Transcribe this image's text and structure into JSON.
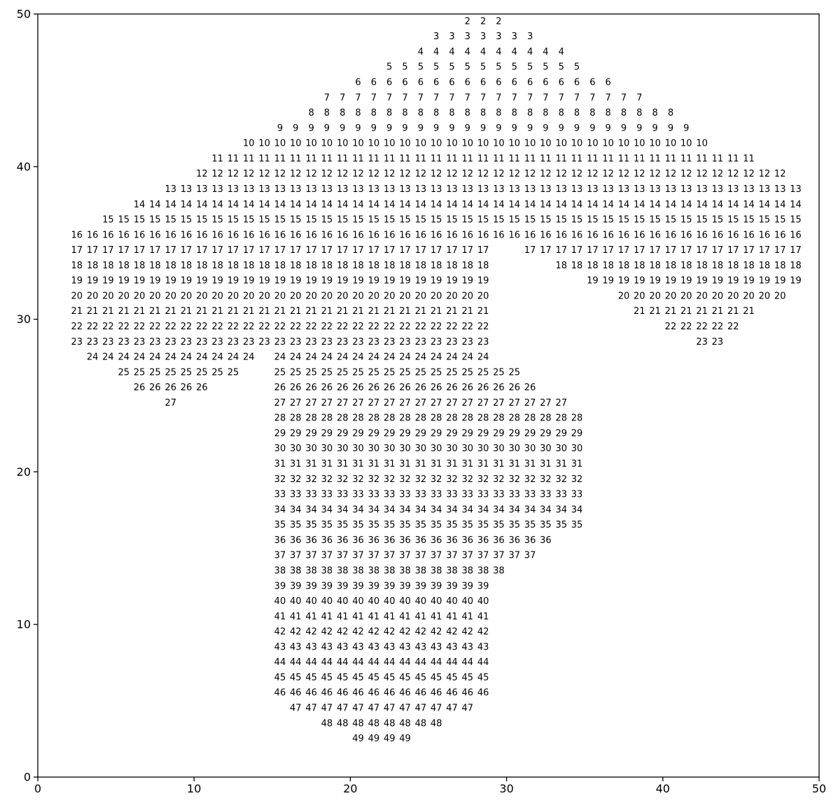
{
  "chart_data": {
    "type": "scatter",
    "title": "",
    "xlabel": "",
    "ylabel": "",
    "xlim": [
      0,
      50
    ],
    "ylim": [
      0,
      50
    ],
    "x_ticks": [
      "0",
      "10",
      "20",
      "30",
      "40",
      "50"
    ],
    "y_ticks": [
      "0",
      "10",
      "20",
      "30",
      "40",
      "50"
    ],
    "grid": false,
    "marker": "text label equal to row value",
    "rows": [
      {
        "value": 2,
        "y": 49,
        "ranges": [
          [
            27,
            29
          ]
        ]
      },
      {
        "value": 3,
        "y": 48,
        "ranges": [
          [
            25,
            31
          ]
        ]
      },
      {
        "value": 4,
        "y": 47,
        "ranges": [
          [
            24,
            33
          ]
        ]
      },
      {
        "value": 5,
        "y": 46,
        "ranges": [
          [
            22,
            34
          ]
        ]
      },
      {
        "value": 6,
        "y": 45,
        "ranges": [
          [
            20,
            36
          ]
        ]
      },
      {
        "value": 7,
        "y": 44,
        "ranges": [
          [
            18,
            38
          ]
        ]
      },
      {
        "value": 8,
        "y": 43,
        "ranges": [
          [
            17,
            40
          ]
        ]
      },
      {
        "value": 9,
        "y": 42,
        "ranges": [
          [
            15,
            41
          ]
        ]
      },
      {
        "value": 10,
        "y": 41,
        "ranges": [
          [
            13,
            42
          ]
        ]
      },
      {
        "value": 11,
        "y": 40,
        "ranges": [
          [
            11,
            45
          ]
        ]
      },
      {
        "value": 12,
        "y": 39,
        "ranges": [
          [
            10,
            47
          ]
        ]
      },
      {
        "value": 13,
        "y": 38,
        "ranges": [
          [
            8,
            48
          ]
        ]
      },
      {
        "value": 14,
        "y": 37,
        "ranges": [
          [
            6,
            48
          ]
        ]
      },
      {
        "value": 15,
        "y": 36,
        "ranges": [
          [
            4,
            48
          ]
        ]
      },
      {
        "value": 16,
        "y": 35,
        "ranges": [
          [
            2,
            48
          ]
        ]
      },
      {
        "value": 17,
        "y": 34,
        "ranges": [
          [
            2,
            28
          ],
          [
            31,
            48
          ]
        ]
      },
      {
        "value": 18,
        "y": 33,
        "ranges": [
          [
            2,
            28
          ],
          [
            33,
            48
          ]
        ]
      },
      {
        "value": 19,
        "y": 32,
        "ranges": [
          [
            2,
            28
          ],
          [
            35,
            48
          ]
        ]
      },
      {
        "value": 20,
        "y": 31,
        "ranges": [
          [
            2,
            28
          ],
          [
            37,
            47
          ]
        ]
      },
      {
        "value": 21,
        "y": 30,
        "ranges": [
          [
            2,
            28
          ],
          [
            38,
            45
          ]
        ]
      },
      {
        "value": 22,
        "y": 29,
        "ranges": [
          [
            2,
            28
          ],
          [
            40,
            44
          ]
        ]
      },
      {
        "value": 23,
        "y": 28,
        "ranges": [
          [
            2,
            28
          ],
          [
            42,
            43
          ]
        ]
      },
      {
        "value": 24,
        "y": 27,
        "ranges": [
          [
            3,
            13
          ],
          [
            15,
            28
          ]
        ]
      },
      {
        "value": 25,
        "y": 26,
        "ranges": [
          [
            5,
            12
          ],
          [
            15,
            30
          ]
        ]
      },
      {
        "value": 26,
        "y": 25,
        "ranges": [
          [
            6,
            10
          ],
          [
            15,
            31
          ]
        ]
      },
      {
        "value": 27,
        "y": 24,
        "ranges": [
          [
            8,
            8
          ],
          [
            15,
            33
          ]
        ]
      },
      {
        "value": 28,
        "y": 23,
        "ranges": [
          [
            15,
            34
          ]
        ]
      },
      {
        "value": 29,
        "y": 22,
        "ranges": [
          [
            15,
            34
          ]
        ]
      },
      {
        "value": 30,
        "y": 21,
        "ranges": [
          [
            15,
            34
          ]
        ]
      },
      {
        "value": 31,
        "y": 20,
        "ranges": [
          [
            15,
            34
          ]
        ]
      },
      {
        "value": 32,
        "y": 19,
        "ranges": [
          [
            15,
            34
          ]
        ]
      },
      {
        "value": 33,
        "y": 18,
        "ranges": [
          [
            15,
            34
          ]
        ]
      },
      {
        "value": 34,
        "y": 17,
        "ranges": [
          [
            15,
            34
          ]
        ]
      },
      {
        "value": 35,
        "y": 16,
        "ranges": [
          [
            15,
            34
          ]
        ]
      },
      {
        "value": 36,
        "y": 15,
        "ranges": [
          [
            15,
            32
          ]
        ]
      },
      {
        "value": 37,
        "y": 14,
        "ranges": [
          [
            15,
            31
          ]
        ]
      },
      {
        "value": 38,
        "y": 13,
        "ranges": [
          [
            15,
            29
          ]
        ]
      },
      {
        "value": 39,
        "y": 12,
        "ranges": [
          [
            15,
            28
          ]
        ]
      },
      {
        "value": 40,
        "y": 11,
        "ranges": [
          [
            15,
            28
          ]
        ]
      },
      {
        "value": 41,
        "y": 10,
        "ranges": [
          [
            15,
            28
          ]
        ]
      },
      {
        "value": 42,
        "y": 9,
        "ranges": [
          [
            15,
            28
          ]
        ]
      },
      {
        "value": 43,
        "y": 8,
        "ranges": [
          [
            15,
            28
          ]
        ]
      },
      {
        "value": 44,
        "y": 7,
        "ranges": [
          [
            15,
            28
          ]
        ]
      },
      {
        "value": 45,
        "y": 6,
        "ranges": [
          [
            15,
            28
          ]
        ]
      },
      {
        "value": 46,
        "y": 5,
        "ranges": [
          [
            15,
            28
          ]
        ]
      },
      {
        "value": 47,
        "y": 4,
        "ranges": [
          [
            16,
            27
          ]
        ]
      },
      {
        "value": 48,
        "y": 3,
        "ranges": [
          [
            18,
            25
          ]
        ]
      },
      {
        "value": 49,
        "y": 2,
        "ranges": [
          [
            20,
            23
          ]
        ]
      }
    ]
  }
}
